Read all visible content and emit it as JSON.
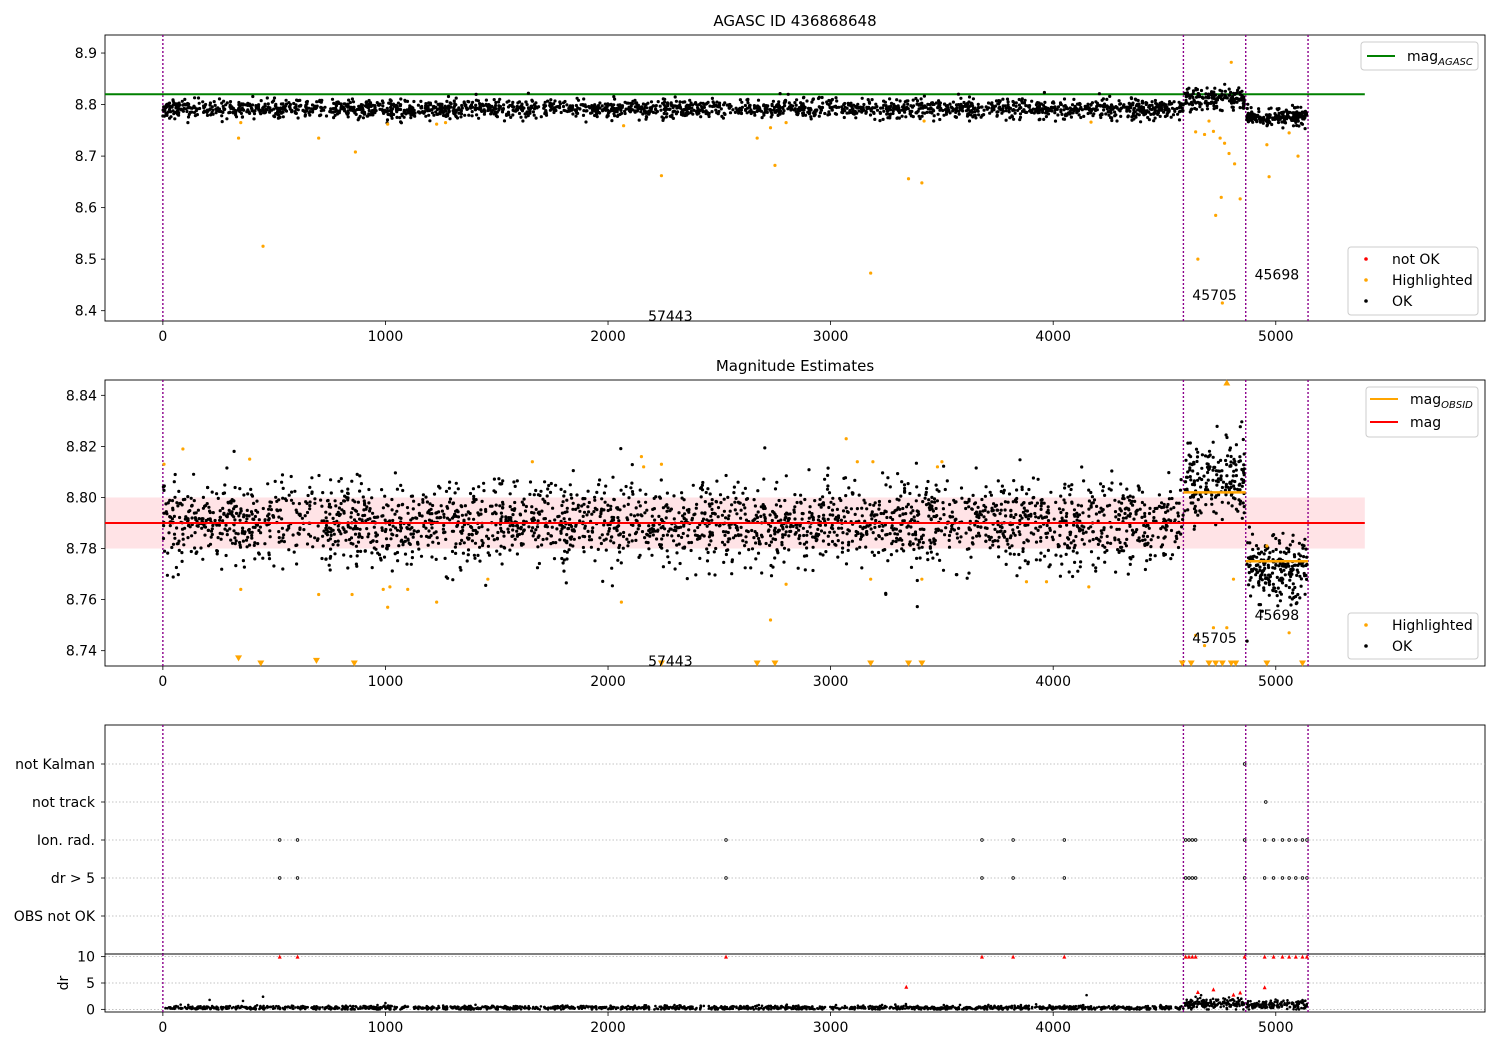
{
  "figure_title": "AGASC ID 436868648",
  "chart_data": [
    {
      "type": "scatter",
      "title": "AGASC ID 436868648",
      "xlabel": "",
      "ylabel": "",
      "xlim": [
        -260,
        5940
      ],
      "ylim": [
        8.38,
        8.935
      ],
      "xticks": [
        0,
        1000,
        2000,
        3000,
        4000,
        5000
      ],
      "yticks": [
        8.4,
        8.5,
        8.6,
        8.7,
        8.8,
        8.9
      ],
      "reference_lines": [
        {
          "name": "mag_AGASC",
          "label_base": "mag",
          "label_sub": "AGASC",
          "y": 8.82,
          "x_range": [
            -260,
            5400
          ],
          "color": "#008000"
        }
      ],
      "observation_boundaries": [
        0,
        4585,
        4865,
        5145
      ],
      "observation_labels": [
        {
          "text": "57443",
          "x": 2280,
          "y": 8.39
        },
        {
          "text": "45705",
          "x": 4725,
          "y": 8.43
        },
        {
          "text": "45698",
          "x": 5005,
          "y": 8.47
        }
      ],
      "series": [
        {
          "name": "not OK",
          "color": "#ff0000",
          "points": []
        },
        {
          "name": "Highlighted",
          "color": "#ffa500",
          "points": [
            [
              340,
              8.735
            ],
            [
              350,
              8.765
            ],
            [
              450,
              8.525
            ],
            [
              700,
              8.735
            ],
            [
              865,
              8.708
            ],
            [
              1010,
              8.762
            ],
            [
              1230,
              8.762
            ],
            [
              1270,
              8.765
            ],
            [
              2070,
              8.759
            ],
            [
              2240,
              8.662
            ],
            [
              2670,
              8.735
            ],
            [
              2730,
              8.755
            ],
            [
              2750,
              8.682
            ],
            [
              2800,
              8.765
            ],
            [
              3180,
              8.473
            ],
            [
              3350,
              8.656
            ],
            [
              3410,
              8.648
            ],
            [
              3420,
              8.768
            ],
            [
              4170,
              8.766
            ],
            [
              4640,
              8.747
            ],
            [
              4650,
              8.5
            ],
            [
              4680,
              8.742
            ],
            [
              4700,
              8.768
            ],
            [
              4720,
              8.748
            ],
            [
              4730,
              8.585
            ],
            [
              4750,
              8.735
            ],
            [
              4755,
              8.62
            ],
            [
              4760,
              8.415
            ],
            [
              4770,
              8.725
            ],
            [
              4790,
              8.705
            ],
            [
              4800,
              8.882
            ],
            [
              4815,
              8.685
            ],
            [
              4840,
              8.617
            ],
            [
              4960,
              8.722
            ],
            [
              4970,
              8.66
            ],
            [
              5060,
              8.745
            ],
            [
              5100,
              8.7
            ]
          ]
        },
        {
          "name": "OK",
          "color": "#000000",
          "segments": [
            {
              "x": [
                0,
                4585
              ],
              "mean": 8.792,
              "spread": 0.009,
              "n": 2200
            },
            {
              "x": [
                4590,
                4860
              ],
              "mean": 8.81,
              "spread": 0.01,
              "n": 170
            },
            {
              "x": [
                4870,
                5140
              ],
              "mean": 8.775,
              "spread": 0.008,
              "n": 200
            }
          ]
        }
      ],
      "legends": [
        {
          "placement": "upper-right",
          "entries": [
            "mag_AGASC"
          ]
        },
        {
          "placement": "lower-right",
          "entries": [
            "not OK",
            "Highlighted",
            "OK"
          ]
        }
      ]
    },
    {
      "type": "scatter",
      "title": "Magnitude Estimates",
      "xlabel": "",
      "ylabel": "",
      "xlim": [
        -260,
        5940
      ],
      "ylim": [
        8.734,
        8.846
      ],
      "xticks": [
        0,
        1000,
        2000,
        3000,
        4000,
        5000
      ],
      "yticks": [
        8.74,
        8.76,
        8.78,
        8.8,
        8.82,
        8.84
      ],
      "observation_boundaries": [
        0,
        4585,
        4865,
        5145
      ],
      "band": {
        "y": [
          8.78,
          8.8
        ],
        "x_range": [
          -260,
          5400
        ],
        "color": "#ffc0c8"
      },
      "reference_lines": [
        {
          "name": "mag",
          "label_base": "mag",
          "label_sub": "",
          "y": 8.79,
          "x_range": [
            -260,
            5400
          ],
          "color": "#ff0000"
        }
      ],
      "obsid_mags": [
        {
          "x": [
            4585,
            4865
          ],
          "y": 8.802
        },
        {
          "x": [
            4865,
            5145
          ],
          "y": 8.775
        }
      ],
      "observation_labels": [
        {
          "text": "57443",
          "x": 2280,
          "y": 8.736
        },
        {
          "text": "45705",
          "x": 4725,
          "y": 8.745
        },
        {
          "text": "45698",
          "x": 5005,
          "y": 8.754
        }
      ],
      "series": [
        {
          "name": "Highlighted",
          "color": "#ffa500",
          "points": [
            [
              5,
              8.813
            ],
            [
              90,
              8.819
            ],
            [
              350,
              8.764
            ],
            [
              390,
              8.815
            ],
            [
              700,
              8.762
            ],
            [
              850,
              8.762
            ],
            [
              990,
              8.764
            ],
            [
              1010,
              8.757
            ],
            [
              1020,
              8.765
            ],
            [
              1100,
              8.764
            ],
            [
              1230,
              8.759
            ],
            [
              1460,
              8.768
            ],
            [
              1660,
              8.814
            ],
            [
              2060,
              8.759
            ],
            [
              2150,
              8.816
            ],
            [
              2160,
              8.812
            ],
            [
              2240,
              8.813
            ],
            [
              2730,
              8.752
            ],
            [
              2800,
              8.766
            ],
            [
              3070,
              8.823
            ],
            [
              3120,
              8.814
            ],
            [
              3180,
              8.768
            ],
            [
              3190,
              8.814
            ],
            [
              3410,
              8.768
            ],
            [
              3480,
              8.812
            ],
            [
              3500,
              8.814
            ],
            [
              3880,
              8.767
            ],
            [
              3970,
              8.767
            ],
            [
              4160,
              8.765
            ],
            [
              4640,
              8.746
            ],
            [
              4680,
              8.742
            ],
            [
              4720,
              8.749
            ],
            [
              4780,
              8.749
            ],
            [
              4810,
              8.768
            ],
            [
              4960,
              8.781
            ],
            [
              5060,
              8.747
            ]
          ]
        },
        {
          "name": "Highlighted-below-range",
          "color": "#ffa500",
          "points": [
            [
              340,
              8.737
            ],
            [
              440,
              8.735
            ],
            [
              690,
              8.736
            ],
            [
              860,
              8.735
            ],
            [
              2240,
              8.735
            ],
            [
              2670,
              8.735
            ],
            [
              2750,
              8.735
            ],
            [
              3180,
              8.735
            ],
            [
              3350,
              8.735
            ],
            [
              3410,
              8.735
            ],
            [
              4580,
              8.735
            ],
            [
              4620,
              8.735
            ],
            [
              4700,
              8.735
            ],
            [
              4730,
              8.735
            ],
            [
              4760,
              8.735
            ],
            [
              4800,
              8.735
            ],
            [
              4820,
              8.735
            ],
            [
              4960,
              8.735
            ],
            [
              5120,
              8.735
            ]
          ]
        },
        {
          "name": "Highlighted-above-range",
          "color": "#ffa500",
          "points": [
            [
              4780,
              8.845
            ]
          ]
        },
        {
          "name": "OK",
          "color": "#000000",
          "segments": [
            {
              "x": [
                0,
                4585
              ],
              "mean": 8.79,
              "spread": 0.008,
              "n": 2600
            },
            {
              "x": [
                4590,
                4860
              ],
              "mean": 8.807,
              "spread": 0.007,
              "n": 200
            },
            {
              "x": [
                4870,
                5140
              ],
              "mean": 8.772,
              "spread": 0.007,
              "n": 220
            }
          ]
        }
      ],
      "legends": [
        {
          "placement": "upper-right",
          "entries": [
            "mag_OBSID",
            "mag"
          ]
        },
        {
          "placement": "lower-right",
          "entries": [
            "Highlighted",
            "OK"
          ]
        }
      ]
    },
    {
      "type": "scatter",
      "title": "",
      "xlabel": "",
      "ylabel": "",
      "xlim": [
        -260,
        5940
      ],
      "observation_boundaries": [
        0,
        4585,
        4865,
        5145
      ],
      "categories": [
        "not Kalman",
        "not track",
        "Ion. rad.",
        "dr > 5",
        "OBS not OK"
      ],
      "flag_points": {
        "not Kalman": [
          4860
        ],
        "not track": [
          4955
        ],
        "Ion. rad.": [
          525,
          605,
          2530,
          3680,
          3820,
          4050,
          4595,
          4610,
          4625,
          4640,
          4860,
          4950,
          4990,
          5030,
          5060,
          5090,
          5120,
          5140
        ],
        "dr > 5": [
          525,
          605,
          2530,
          3680,
          3820,
          4050,
          4595,
          4610,
          4625,
          4640,
          4860,
          4950,
          4990,
          5030,
          5060,
          5090,
          5120,
          5140
        ],
        "OBS not OK": []
      }
    },
    {
      "type": "scatter",
      "title": "",
      "xlabel": "",
      "ylabel": "dr",
      "xlim": [
        -260,
        5940
      ],
      "ylim": [
        -0.5,
        10.5
      ],
      "xticks": [
        0,
        1000,
        2000,
        3000,
        4000,
        5000
      ],
      "yticks": [
        0,
        5,
        10
      ],
      "observation_boundaries": [
        0,
        4585,
        4865,
        5145
      ],
      "series": [
        {
          "name": "dr",
          "color": "#000000",
          "segments": [
            {
              "x": [
                0,
                4585
              ],
              "mean": 0.3,
              "spread": 0.2,
              "n": 1600
            },
            {
              "x": [
                4590,
                4860
              ],
              "mean": 1.1,
              "spread": 0.5,
              "n": 160
            },
            {
              "x": [
                4870,
                5140
              ],
              "mean": 0.9,
              "spread": 0.4,
              "n": 160
            }
          ],
          "extra_points": [
            [
              80,
              0.9
            ],
            [
              210,
              1.8
            ],
            [
              360,
              1.6
            ],
            [
              450,
              2.4
            ],
            [
              1000,
              1.2
            ],
            [
              2800,
              0.7
            ],
            [
              4150,
              2.7
            ]
          ]
        },
        {
          "name": "dr > 5",
          "color": "#ff0000",
          "points": [
            [
              525,
              10
            ],
            [
              605,
              10
            ],
            [
              2530,
              10
            ],
            [
              3680,
              10
            ],
            [
              3820,
              10
            ],
            [
              4050,
              10
            ],
            [
              4595,
              10
            ],
            [
              4610,
              10
            ],
            [
              4625,
              10
            ],
            [
              4640,
              10
            ],
            [
              4860,
              10
            ],
            [
              4950,
              10
            ],
            [
              4990,
              10
            ],
            [
              5030,
              10
            ],
            [
              5060,
              10
            ],
            [
              5090,
              10
            ],
            [
              5120,
              10
            ],
            [
              5140,
              10
            ],
            [
              3340,
              4.3
            ],
            [
              4650,
              3.3
            ],
            [
              4720,
              3.8
            ],
            [
              4810,
              2.8
            ],
            [
              4840,
              3.2
            ],
            [
              4950,
              4.2
            ]
          ]
        }
      ]
    }
  ]
}
